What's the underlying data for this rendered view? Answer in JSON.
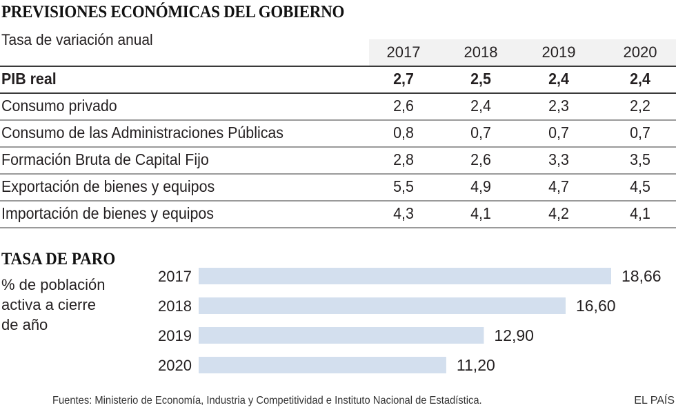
{
  "title": "PREVISIONES ECONÓMICAS DEL GOBIERNO",
  "subtitle": "Tasa de variación anual",
  "table": {
    "years": [
      "2017",
      "2018",
      "2019",
      "2020"
    ],
    "rows": [
      {
        "label": "PIB real",
        "bold": true,
        "values": [
          "2,7",
          "2,5",
          "2,4",
          "2,4"
        ]
      },
      {
        "label": "Consumo privado",
        "bold": false,
        "values": [
          "2,6",
          "2,4",
          "2,3",
          "2,2"
        ]
      },
      {
        "label": "Consumo de las Administraciones Públicas",
        "bold": false,
        "values": [
          "0,8",
          "0,7",
          "0,7",
          "0,7"
        ]
      },
      {
        "label": "Formación Bruta de Capital Fijo",
        "bold": false,
        "values": [
          "2,8",
          "2,6",
          "3,3",
          "3,5"
        ]
      },
      {
        "label": "Exportación de bienes y equipos",
        "bold": false,
        "values": [
          "5,5",
          "4,9",
          "4,7",
          "4,5"
        ]
      },
      {
        "label": "Importación de bienes y equipos",
        "bold": false,
        "values": [
          "4,3",
          "4,1",
          "4,2",
          "4,1"
        ]
      }
    ]
  },
  "unemployment": {
    "title": "TASA DE PARO",
    "subtitle": "% de población\nactiva a cierre\nde año"
  },
  "chart_data": [
    {
      "type": "table",
      "title": "PREVISIONES ECONÓMICAS DEL GOBIERNO",
      "subtitle": "Tasa de variación anual",
      "columns": [
        "2017",
        "2018",
        "2019",
        "2020"
      ],
      "rows": [
        {
          "name": "PIB real",
          "values": [
            2.7,
            2.5,
            2.4,
            2.4
          ]
        },
        {
          "name": "Consumo privado",
          "values": [
            2.6,
            2.4,
            2.3,
            2.2
          ]
        },
        {
          "name": "Consumo de las Administraciones Públicas",
          "values": [
            0.8,
            0.7,
            0.7,
            0.7
          ]
        },
        {
          "name": "Formación Bruta de Capital Fijo",
          "values": [
            2.8,
            2.6,
            3.3,
            3.5
          ]
        },
        {
          "name": "Exportación de bienes y equipos",
          "values": [
            5.5,
            4.9,
            4.7,
            4.5
          ]
        },
        {
          "name": "Importación de bienes y equipos",
          "values": [
            4.3,
            4.1,
            4.2,
            4.1
          ]
        }
      ]
    },
    {
      "type": "bar",
      "orientation": "horizontal",
      "title": "TASA DE PARO",
      "subtitle": "% de población activa a cierre de año",
      "categories": [
        "2017",
        "2018",
        "2019",
        "2020"
      ],
      "values": [
        18.66,
        16.6,
        12.9,
        11.2
      ],
      "labels": [
        "18,66",
        "16,60",
        "12,90",
        "11,20"
      ],
      "xlabel": "",
      "ylabel": "",
      "xlim": [
        0,
        18.66
      ],
      "grid": false,
      "bar_color": "#d3dfee"
    }
  ],
  "footer": {
    "source": "Fuentes: Ministerio de Economía, Industria y Competitividad e Instituto Nacional de Estadística.",
    "brand": "EL PAÍS"
  }
}
